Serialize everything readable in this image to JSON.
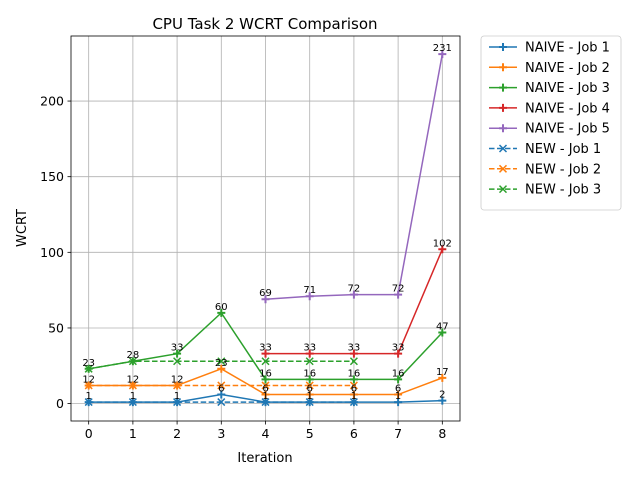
{
  "chart_data": {
    "type": "line",
    "title": "CPU Task 2 WCRT Comparison",
    "xlabel": "Iteration",
    "ylabel": "WCRT",
    "xlim": [
      -0.4,
      8.4
    ],
    "ylim": [
      -11.5,
      243
    ],
    "xticks": [
      0,
      1,
      2,
      3,
      4,
      5,
      6,
      7,
      8
    ],
    "yticks": [
      0,
      50,
      100,
      150,
      200
    ],
    "grid": true,
    "legend_position": "outside-right-top",
    "series": [
      {
        "name": "NAIVE - Job 1",
        "color": "#1f77b4",
        "linestyle": "solid",
        "marker": "plus",
        "x": [
          0,
          1,
          2,
          3,
          4,
          5,
          6,
          7,
          8
        ],
        "values": [
          1,
          1,
          1,
          6,
          1,
          1,
          1,
          1,
          2
        ]
      },
      {
        "name": "NAIVE - Job 2",
        "color": "#ff7f0e",
        "linestyle": "solid",
        "marker": "plus",
        "x": [
          0,
          1,
          2,
          3,
          4,
          5,
          6,
          7,
          8
        ],
        "values": [
          12,
          12,
          12,
          23,
          6,
          6,
          6,
          6,
          17
        ]
      },
      {
        "name": "NAIVE - Job 3",
        "color": "#2ca02c",
        "linestyle": "solid",
        "marker": "plus",
        "x": [
          0,
          1,
          2,
          3,
          4,
          5,
          6,
          7,
          8
        ],
        "values": [
          23,
          28,
          33,
          60,
          16,
          16,
          16,
          16,
          47
        ]
      },
      {
        "name": "NAIVE - Job 4",
        "color": "#d62728",
        "linestyle": "solid",
        "marker": "plus",
        "x": [
          4,
          5,
          6,
          7,
          8
        ],
        "values": [
          33,
          33,
          33,
          33,
          102
        ]
      },
      {
        "name": "NAIVE - Job 5",
        "color": "#9467bd",
        "linestyle": "solid",
        "marker": "plus",
        "x": [
          4,
          5,
          6,
          7,
          8
        ],
        "values": [
          69,
          71,
          72,
          72,
          231
        ]
      },
      {
        "name": "NEW - Job 1",
        "color": "#1f77b4",
        "linestyle": "dashed",
        "marker": "x",
        "x": [
          0,
          1,
          2,
          3,
          4,
          5,
          6
        ],
        "values": [
          1,
          1,
          1,
          1,
          1,
          1,
          1
        ]
      },
      {
        "name": "NEW - Job 2",
        "color": "#ff7f0e",
        "linestyle": "dashed",
        "marker": "x",
        "x": [
          0,
          1,
          2,
          3,
          4,
          5,
          6
        ],
        "values": [
          12,
          12,
          12,
          12,
          12,
          12,
          12
        ]
      },
      {
        "name": "NEW - Job 3",
        "color": "#2ca02c",
        "linestyle": "dashed",
        "marker": "x",
        "x": [
          0,
          1,
          2,
          3,
          4,
          5,
          6
        ],
        "values": [
          23,
          28,
          28,
          28,
          28,
          28,
          28
        ]
      }
    ]
  }
}
